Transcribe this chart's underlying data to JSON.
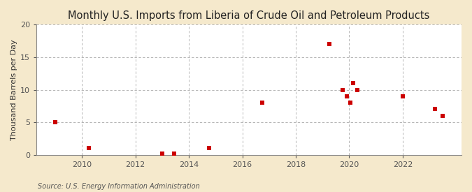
{
  "title": "Monthly U.S. Imports from Liberia of Crude Oil and Petroleum Products",
  "ylabel": "Thousand Barrels per Day",
  "source": "Source: U.S. Energy Information Administration",
  "figure_bg_color": "#f5e9cc",
  "plot_bg_color": "#ffffff",
  "marker_color": "#cc0000",
  "marker_size": 18,
  "xlim": [
    2008.3,
    2024.2
  ],
  "ylim": [
    0,
    20
  ],
  "yticks": [
    0,
    5,
    10,
    15,
    20
  ],
  "xticks": [
    2010,
    2012,
    2014,
    2016,
    2018,
    2020,
    2022
  ],
  "data_points": [
    [
      2009.0,
      5.0
    ],
    [
      2010.25,
      1.0
    ],
    [
      2013.0,
      0.15
    ],
    [
      2013.45,
      0.2
    ],
    [
      2014.75,
      1.0
    ],
    [
      2016.75,
      8.0
    ],
    [
      2019.25,
      17.0
    ],
    [
      2019.75,
      10.0
    ],
    [
      2019.9,
      9.0
    ],
    [
      2020.05,
      8.0
    ],
    [
      2020.15,
      11.0
    ],
    [
      2020.3,
      10.0
    ],
    [
      2022.0,
      9.0
    ],
    [
      2023.2,
      7.0
    ],
    [
      2023.5,
      6.0
    ]
  ],
  "hgrid_color": "#aaaaaa",
  "vgrid_color": "#aaaaaa",
  "grid_linestyle": "--",
  "title_fontsize": 10.5,
  "ylabel_fontsize": 8,
  "tick_fontsize": 8,
  "source_fontsize": 7
}
